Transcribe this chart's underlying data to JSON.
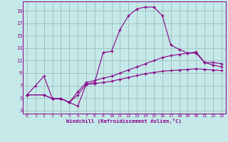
{
  "xlabel": "Windchill (Refroidissement éolien,°C)",
  "background_color": "#c5e8e8",
  "grid_color": "#9bbfbf",
  "line_color": "#880088",
  "xlim": [
    -0.5,
    23.5
  ],
  "ylim": [
    2.5,
    20.5
  ],
  "xticks": [
    0,
    1,
    2,
    3,
    4,
    5,
    6,
    7,
    8,
    9,
    10,
    11,
    12,
    13,
    14,
    15,
    16,
    17,
    18,
    19,
    20,
    21,
    22,
    23
  ],
  "yticks": [
    3,
    5,
    7,
    9,
    11,
    13,
    15,
    17,
    19
  ],
  "curve1_x": [
    0,
    1,
    2,
    3,
    4,
    5,
    6,
    7,
    8,
    9,
    10,
    11,
    12,
    13,
    14,
    15,
    16,
    17,
    18,
    19,
    20,
    21,
    22,
    23
  ],
  "curve1_y": [
    5.5,
    7.0,
    8.5,
    4.9,
    4.9,
    4.3,
    3.7,
    7.2,
    7.5,
    12.3,
    12.5,
    16.0,
    18.2,
    19.3,
    19.6,
    19.6,
    18.2,
    13.5,
    12.8,
    12.2,
    12.2,
    10.7,
    10.7,
    10.5
  ],
  "curve2_x": [
    0,
    2,
    3,
    4,
    5,
    6,
    7,
    8,
    9,
    10,
    11,
    12,
    13,
    14,
    15,
    16,
    17,
    18,
    19,
    20,
    21,
    22,
    23
  ],
  "curve2_y": [
    5.5,
    5.5,
    4.9,
    4.9,
    4.3,
    6.0,
    7.5,
    7.8,
    8.2,
    8.5,
    9.0,
    9.5,
    10.0,
    10.5,
    11.0,
    11.5,
    11.8,
    12.0,
    12.2,
    12.4,
    10.7,
    10.3,
    10.0
  ],
  "curve3_x": [
    0,
    2,
    3,
    4,
    5,
    6,
    7,
    8,
    9,
    10,
    11,
    12,
    13,
    14,
    15,
    16,
    17,
    18,
    19,
    20,
    21,
    22,
    23
  ],
  "curve3_y": [
    5.5,
    5.5,
    4.9,
    4.9,
    4.3,
    5.5,
    7.2,
    7.3,
    7.5,
    7.7,
    8.0,
    8.3,
    8.6,
    8.9,
    9.1,
    9.3,
    9.4,
    9.5,
    9.6,
    9.7,
    9.6,
    9.5,
    9.4
  ]
}
